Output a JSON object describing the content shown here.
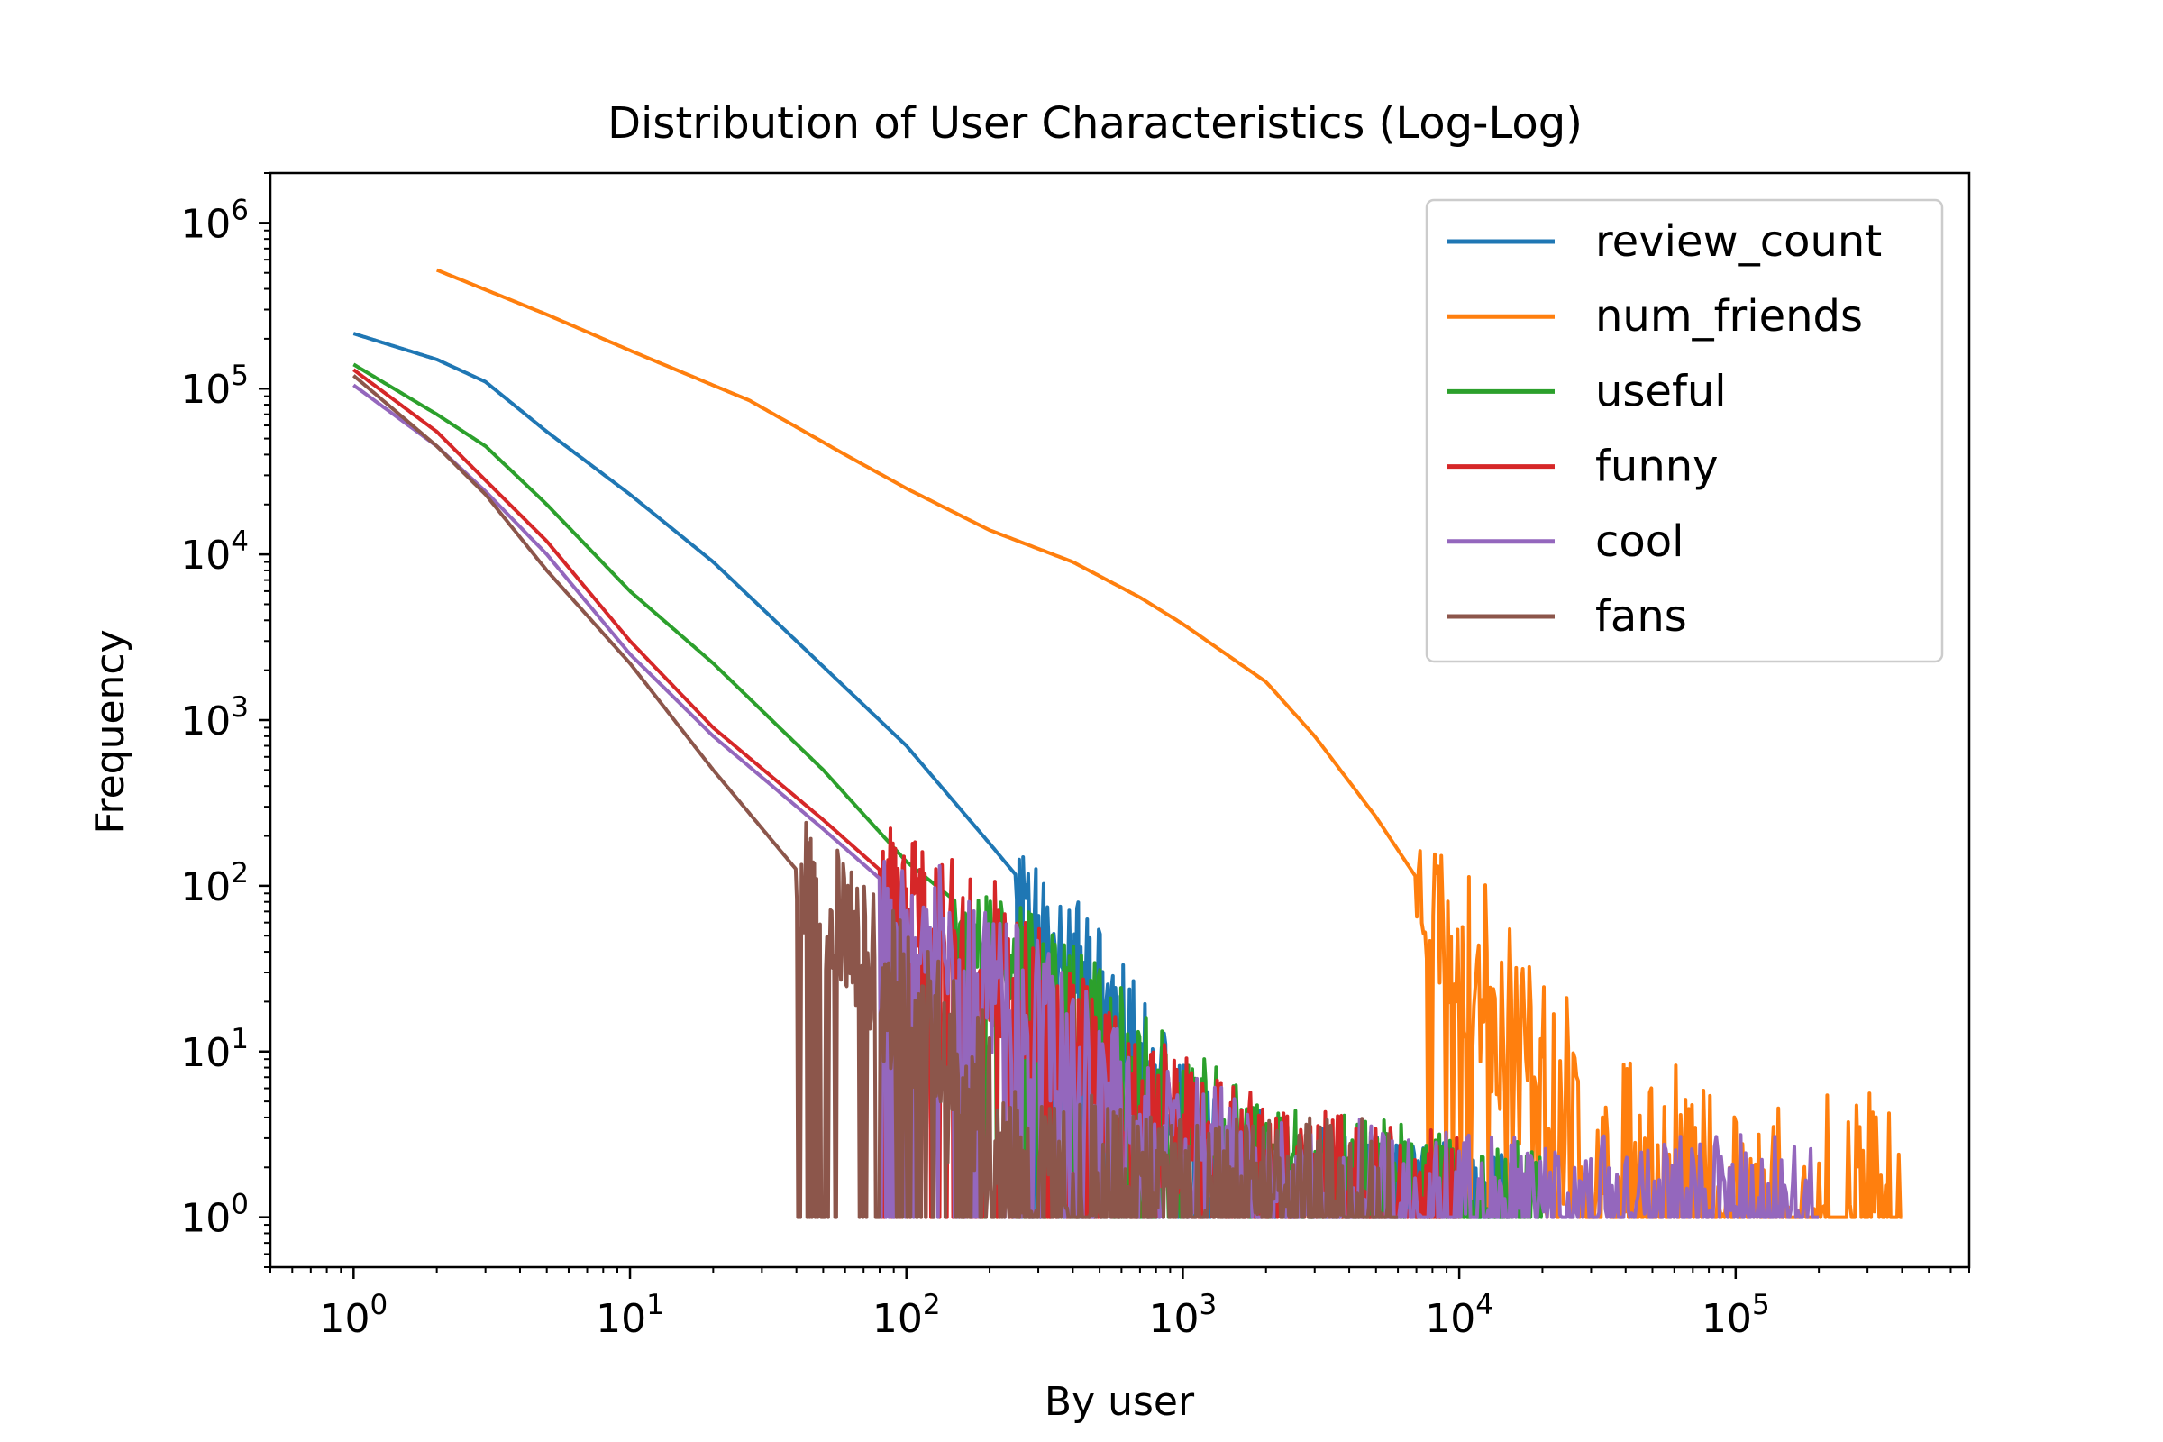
{
  "chart_data": {
    "type": "line",
    "title": "Distribution of User Characteristics (Log-Log)",
    "xlabel": "By user",
    "ylabel": "Frequency",
    "xscale": "log",
    "yscale": "log",
    "xlim": [
      0.5,
      700000
    ],
    "ylim": [
      0.5,
      2000000
    ],
    "x_ticks": [
      {
        "value": 1,
        "base": "10",
        "exp": "0"
      },
      {
        "value": 10,
        "base": "10",
        "exp": "1"
      },
      {
        "value": 100,
        "base": "10",
        "exp": "2"
      },
      {
        "value": 1000,
        "base": "10",
        "exp": "3"
      },
      {
        "value": 10000,
        "base": "10",
        "exp": "4"
      },
      {
        "value": 100000,
        "base": "10",
        "exp": "5"
      }
    ],
    "y_ticks": [
      {
        "value": 1,
        "base": "10",
        "exp": "0"
      },
      {
        "value": 10,
        "base": "10",
        "exp": "1"
      },
      {
        "value": 100,
        "base": "10",
        "exp": "2"
      },
      {
        "value": 1000,
        "base": "10",
        "exp": "3"
      },
      {
        "value": 10000,
        "base": "10",
        "exp": "4"
      },
      {
        "value": 100000,
        "base": "10",
        "exp": "5"
      },
      {
        "value": 1000000,
        "base": "10",
        "exp": "6"
      }
    ],
    "legend_position": "top-right",
    "series": [
      {
        "name": "review_count",
        "color": "#1f77b4",
        "points": [
          [
            1,
            215000
          ],
          [
            2,
            150000
          ],
          [
            3,
            110000
          ],
          [
            5,
            55000
          ],
          [
            10,
            23000
          ],
          [
            20,
            9000
          ],
          [
            40,
            3000
          ],
          [
            100,
            700
          ],
          [
            200,
            180
          ],
          [
            300,
            80
          ],
          [
            500,
            25
          ],
          [
            700,
            8
          ],
          [
            1000,
            3
          ],
          [
            2000,
            1.6
          ],
          [
            4000,
            1.2
          ],
          [
            8000,
            1
          ],
          [
            15000,
            1
          ]
        ],
        "noise_from": 250,
        "noise_amp": 0.45,
        "seed": 11
      },
      {
        "name": "num_friends",
        "color": "#ff7f0e",
        "points": [
          [
            2,
            520000
          ],
          [
            5,
            280000
          ],
          [
            10,
            170000
          ],
          [
            27,
            85000
          ],
          [
            60,
            40000
          ],
          [
            100,
            25000
          ],
          [
            200,
            14000
          ],
          [
            400,
            9000
          ],
          [
            700,
            5500
          ],
          [
            1000,
            3800
          ],
          [
            2000,
            1700
          ],
          [
            3000,
            800
          ],
          [
            5000,
            260
          ],
          [
            8000,
            80
          ],
          [
            10000,
            45
          ],
          [
            15000,
            15
          ],
          [
            20000,
            6
          ],
          [
            30000,
            2.5
          ],
          [
            50000,
            1.6
          ],
          [
            100000,
            1.2
          ],
          [
            200000,
            1
          ],
          [
            400000,
            1
          ]
        ],
        "noise_from": 7000,
        "noise_amp": 0.75,
        "seed": 23
      },
      {
        "name": "useful",
        "color": "#2ca02c",
        "points": [
          [
            1,
            140000
          ],
          [
            2,
            70000
          ],
          [
            3,
            45000
          ],
          [
            5,
            20000
          ],
          [
            10,
            6000
          ],
          [
            20,
            2200
          ],
          [
            50,
            500
          ],
          [
            100,
            140
          ],
          [
            200,
            55
          ],
          [
            500,
            12
          ],
          [
            1000,
            4
          ],
          [
            2000,
            2
          ],
          [
            5000,
            1.4
          ],
          [
            10000,
            1.1
          ],
          [
            20000,
            1
          ]
        ],
        "noise_from": 150,
        "noise_amp": 0.45,
        "seed": 37
      },
      {
        "name": "funny",
        "color": "#d62728",
        "points": [
          [
            1,
            130000
          ],
          [
            2,
            55000
          ],
          [
            3,
            28000
          ],
          [
            5,
            12000
          ],
          [
            10,
            3000
          ],
          [
            20,
            900
          ],
          [
            50,
            250
          ],
          [
            100,
            90
          ],
          [
            200,
            40
          ],
          [
            500,
            8
          ],
          [
            1000,
            3
          ],
          [
            2000,
            1.6
          ],
          [
            5000,
            1.2
          ],
          [
            10000,
            1
          ]
        ],
        "noise_from": 80,
        "noise_amp": 0.5,
        "seed": 41
      },
      {
        "name": "cool",
        "color": "#9467bd",
        "points": [
          [
            1,
            105000
          ],
          [
            2,
            45000
          ],
          [
            3,
            24000
          ],
          [
            5,
            10000
          ],
          [
            10,
            2500
          ],
          [
            20,
            800
          ],
          [
            50,
            220
          ],
          [
            100,
            80
          ],
          [
            200,
            30
          ],
          [
            500,
            6
          ],
          [
            1000,
            2.5
          ],
          [
            2000,
            1.6
          ],
          [
            5000,
            1.2
          ],
          [
            10000,
            1.05
          ],
          [
            20000,
            1
          ],
          [
            100000,
            1
          ],
          [
            200000,
            1
          ]
        ],
        "noise_from": 80,
        "noise_amp": 0.5,
        "seed": 53
      },
      {
        "name": "fans",
        "color": "#8c564b",
        "points": [
          [
            1,
            120000
          ],
          [
            2,
            45000
          ],
          [
            3,
            23000
          ],
          [
            5,
            8000
          ],
          [
            10,
            2200
          ],
          [
            20,
            500
          ],
          [
            50,
            80
          ],
          [
            100,
            18
          ],
          [
            200,
            4
          ],
          [
            300,
            2
          ],
          [
            500,
            1.3
          ],
          [
            1000,
            1
          ],
          [
            6000,
            1
          ]
        ],
        "noise_from": 40,
        "noise_amp": 0.6,
        "seed": 67
      }
    ]
  }
}
